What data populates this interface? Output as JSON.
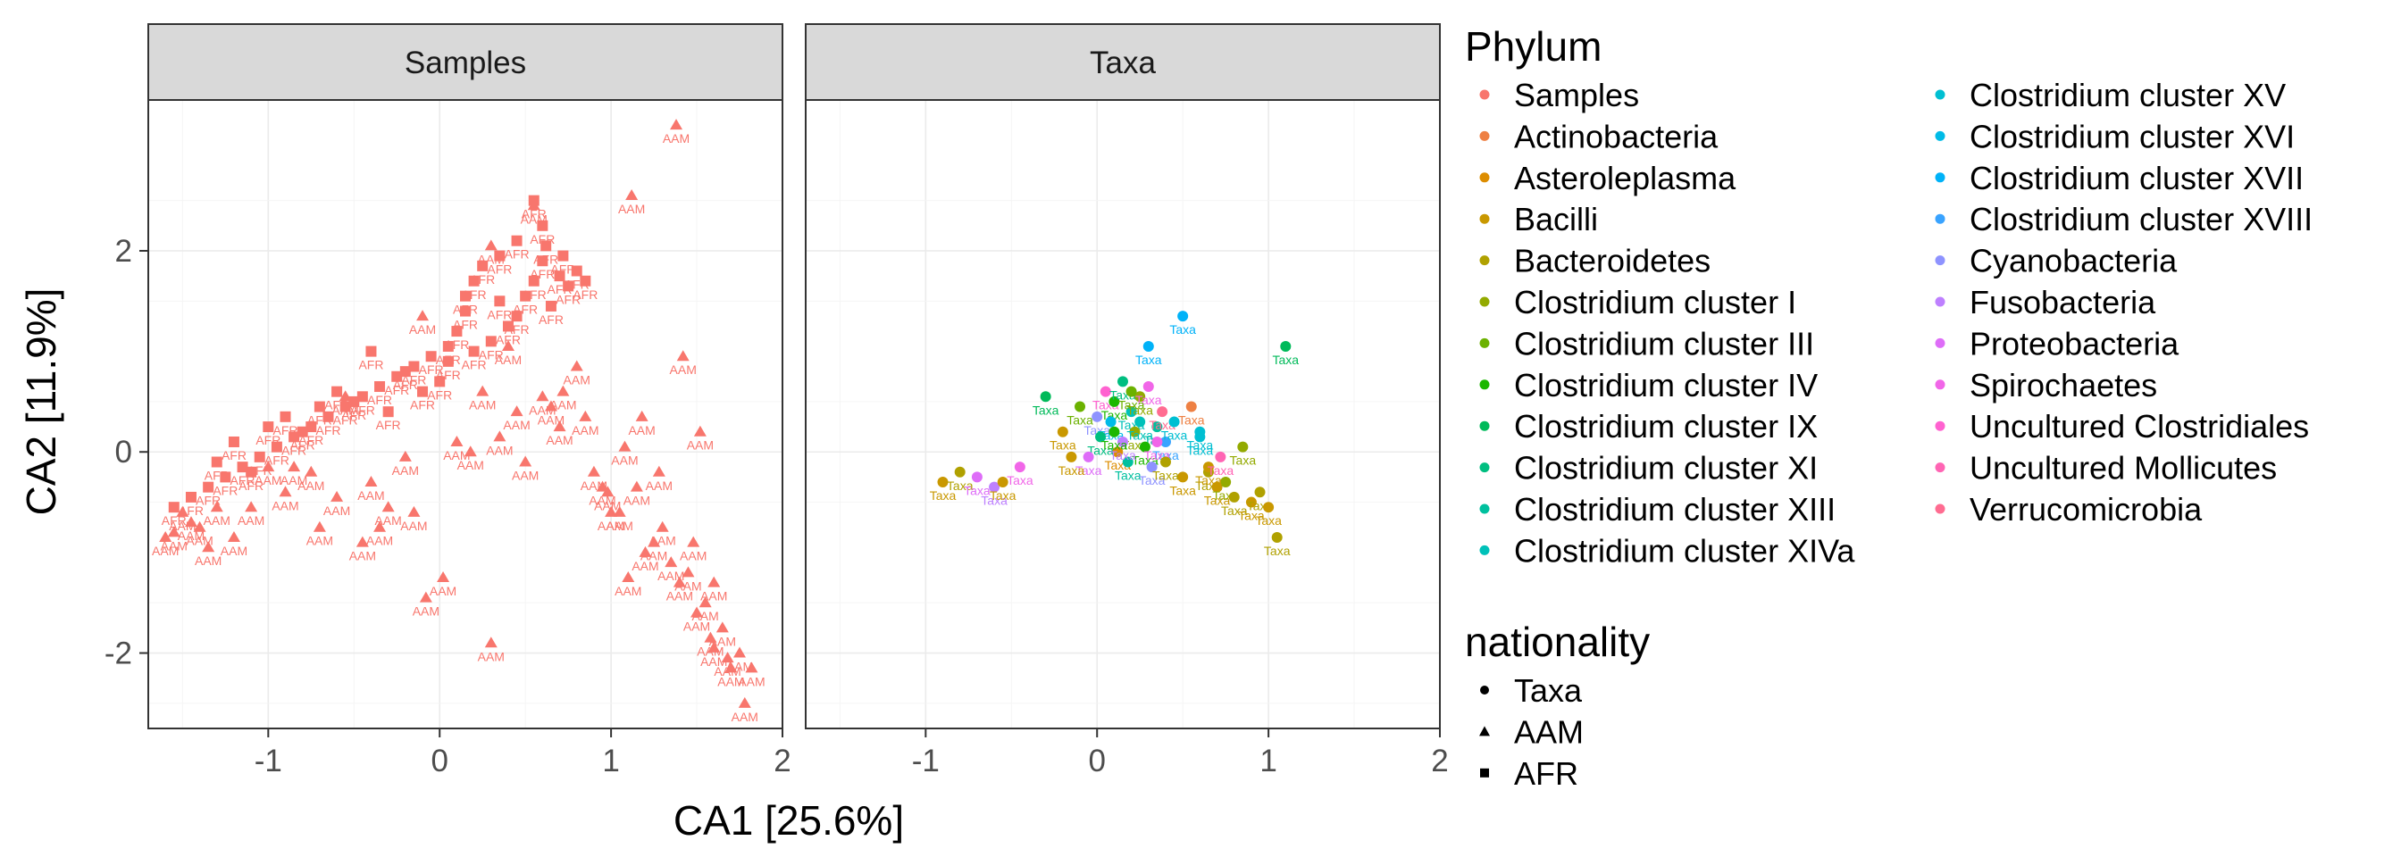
{
  "chart_data": {
    "type": "scatter",
    "panels": [
      "Samples",
      "Taxa"
    ],
    "xlabel": "CA1   [25.6%]",
    "ylabel": "CA2   [11.9%]",
    "xlim": [
      -1.7,
      2.0
    ],
    "ylim": [
      -2.75,
      3.5
    ],
    "x_ticks": [
      "-1",
      "0",
      "1",
      "2"
    ],
    "y_ticks": [
      "-2",
      "0",
      "2"
    ],
    "grid": true,
    "legend_placement": "right",
    "legends": {
      "phylum": {
        "title": "Phylum",
        "entries": [
          {
            "label": "Samples",
            "color": "#F8766D"
          },
          {
            "label": "Actinobacteria",
            "color": "#EE8043"
          },
          {
            "label": "Asteroleplasma",
            "color": "#DD8D00"
          },
          {
            "label": "Bacilli",
            "color": "#C99800"
          },
          {
            "label": "Bacteroidetes",
            "color": "#B0A100"
          },
          {
            "label": "Clostridium cluster I",
            "color": "#93AA00"
          },
          {
            "label": "Clostridium cluster III",
            "color": "#6BB100"
          },
          {
            "label": "Clostridium cluster IV",
            "color": "#1CB700"
          },
          {
            "label": "Clostridium cluster IX",
            "color": "#00BA5A"
          },
          {
            "label": "Clostridium cluster XI",
            "color": "#00BE80"
          },
          {
            "label": "Clostridium cluster XIII",
            "color": "#00C09E"
          },
          {
            "label": "Clostridium cluster XIVa",
            "color": "#00C1B9"
          },
          {
            "label": "Clostridium cluster XV",
            "color": "#00BFD2"
          },
          {
            "label": "Clostridium cluster XVI",
            "color": "#00BBE7"
          },
          {
            "label": "Clostridium cluster XVII",
            "color": "#00B2F8"
          },
          {
            "label": "Clostridium cluster XVIII",
            "color": "#39A3FF"
          },
          {
            "label": "Cyanobacteria",
            "color": "#8E93FF"
          },
          {
            "label": "Fusobacteria",
            "color": "#BE80FF"
          },
          {
            "label": "Proteobacteria",
            "color": "#DE6DF8"
          },
          {
            "label": "Spirochaetes",
            "color": "#F166E8"
          },
          {
            "label": "Uncultured Clostridiales",
            "color": "#FF62D0"
          },
          {
            "label": "Uncultured Mollicutes",
            "color": "#FF65B4"
          },
          {
            "label": "Verrucomicrobia",
            "color": "#FF6C91"
          }
        ]
      },
      "nationality": {
        "title": "nationality",
        "entries": [
          {
            "label": "Taxa",
            "shape": "circle"
          },
          {
            "label": "AAM",
            "shape": "triangle"
          },
          {
            "label": "AFR",
            "shape": "square"
          }
        ]
      }
    },
    "series": [
      {
        "panel": "Samples",
        "name": "AAM",
        "color": "#F8766D",
        "shape": "triangle",
        "x": [
          1.38,
          1.12,
          0.55,
          0.3,
          -0.1,
          -0.55,
          -1.55,
          -1.4,
          -1.2,
          -1.1,
          -0.9,
          -0.7,
          -0.45,
          -0.3,
          -0.4,
          -0.2,
          0.1,
          0.35,
          0.5,
          0.72,
          0.85,
          0.6,
          0.9,
          1.05,
          1.15,
          1.25,
          1.4,
          1.5,
          1.6,
          1.7,
          1.78,
          1.82,
          1.65,
          1.55,
          1.45,
          1.35,
          1.2,
          1.1,
          1.0,
          0.95,
          1.3,
          1.42,
          1.52,
          0.02,
          -0.08,
          0.3,
          -0.6,
          -0.75,
          -1.0,
          -1.3,
          -1.45,
          -1.6,
          0.8,
          0.7,
          1.18,
          1.08,
          0.98,
          1.28,
          1.48,
          1.58,
          1.68,
          -0.35,
          -0.15,
          0.18,
          0.45,
          0.65,
          0.25,
          0.4,
          -1.5,
          -1.35,
          -0.85,
          1.75,
          1.6
        ],
        "y": [
          3.25,
          2.55,
          2.45,
          2.05,
          1.35,
          0.55,
          -0.8,
          -0.75,
          -0.85,
          -0.55,
          -0.4,
          -0.75,
          -0.9,
          -0.55,
          -0.3,
          -0.05,
          0.1,
          0.15,
          -0.1,
          0.6,
          0.35,
          0.55,
          -0.2,
          -0.6,
          -0.35,
          -0.9,
          -1.3,
          -1.6,
          -1.95,
          -2.15,
          -2.5,
          -2.15,
          -1.75,
          -1.5,
          -1.2,
          -1.1,
          -1.0,
          -1.25,
          -0.6,
          -0.35,
          -0.75,
          0.95,
          0.2,
          -1.25,
          -1.45,
          -1.9,
          -0.45,
          -0.2,
          -0.15,
          -0.55,
          -0.7,
          -0.85,
          0.85,
          0.25,
          0.35,
          0.05,
          -0.4,
          -0.2,
          -0.9,
          -1.85,
          -2.05,
          -0.75,
          -0.6,
          0.0,
          0.4,
          0.45,
          0.6,
          1.05,
          -0.6,
          -0.95,
          -0.15,
          -2.0,
          -1.3
        ]
      },
      {
        "panel": "Samples",
        "name": "AFR",
        "color": "#F8766D",
        "shape": "square",
        "x": [
          0.55,
          0.6,
          0.45,
          0.35,
          0.25,
          0.2,
          0.15,
          0.6,
          0.7,
          0.75,
          0.8,
          0.65,
          0.5,
          0.4,
          0.3,
          0.1,
          0.05,
          -0.05,
          -0.15,
          -0.25,
          -0.35,
          -0.45,
          -0.55,
          -0.65,
          -0.75,
          -0.85,
          -0.95,
          -1.05,
          -1.15,
          -1.25,
          -1.35,
          -1.45,
          -1.55,
          -0.9,
          -0.8,
          -0.6,
          -0.5,
          -0.2,
          0.0,
          0.2,
          -1.0,
          -1.2,
          -1.3,
          0.85,
          0.45,
          0.35,
          0.15,
          0.05,
          -0.1,
          -0.3,
          -0.4,
          -0.7,
          -1.1,
          0.62,
          0.55,
          0.72
        ],
        "y": [
          2.5,
          2.25,
          2.1,
          1.95,
          1.85,
          1.7,
          1.55,
          1.9,
          1.75,
          1.65,
          1.8,
          1.45,
          1.55,
          1.25,
          1.1,
          1.2,
          1.05,
          0.95,
          0.85,
          0.75,
          0.65,
          0.55,
          0.45,
          0.35,
          0.25,
          0.15,
          0.05,
          -0.05,
          -0.15,
          -0.25,
          -0.35,
          -0.45,
          -0.55,
          0.35,
          0.2,
          0.6,
          0.5,
          0.8,
          0.7,
          1.0,
          0.25,
          0.1,
          -0.1,
          1.7,
          1.35,
          1.5,
          1.4,
          0.9,
          0.6,
          0.4,
          1.0,
          0.45,
          -0.2,
          2.05,
          1.7,
          1.95
        ]
      },
      {
        "panel": "Taxa",
        "name": "Taxa",
        "shape": "circle",
        "x": [
          -0.9,
          -0.8,
          -0.7,
          -0.6,
          -0.55,
          -0.45,
          -0.3,
          -0.2,
          -0.1,
          0.0,
          0.05,
          0.1,
          0.15,
          0.2,
          0.25,
          0.3,
          0.35,
          0.4,
          0.5,
          0.55,
          0.6,
          0.65,
          0.7,
          0.75,
          0.8,
          0.9,
          0.95,
          1.0,
          1.05,
          1.1,
          0.08,
          0.12,
          0.18,
          0.22,
          0.28,
          0.32,
          0.02,
          -0.05,
          0.38,
          0.45,
          0.5,
          0.3,
          0.2,
          0.15,
          0.25,
          0.1,
          0.35,
          0.4,
          -0.15,
          0.6,
          0.65,
          0.72,
          0.85
        ],
        "y": [
          -0.3,
          -0.2,
          -0.25,
          -0.35,
          -0.3,
          -0.15,
          0.55,
          0.2,
          0.45,
          0.35,
          0.6,
          0.5,
          0.7,
          0.4,
          0.55,
          0.65,
          0.25,
          0.1,
          1.35,
          0.45,
          0.15,
          -0.2,
          -0.35,
          -0.3,
          -0.45,
          -0.5,
          -0.4,
          -0.55,
          -0.85,
          1.05,
          0.3,
          0.0,
          -0.1,
          0.2,
          0.05,
          -0.15,
          0.15,
          -0.05,
          0.4,
          0.3,
          -0.25,
          1.05,
          0.6,
          0.1,
          0.3,
          0.2,
          0.1,
          -0.1,
          -0.05,
          0.2,
          -0.15,
          -0.05,
          0.05
        ],
        "colors": [
          "#C99800",
          "#B0A100",
          "#DE6DF8",
          "#BE80FF",
          "#C99800",
          "#F166E8",
          "#00BA5A",
          "#C99800",
          "#6BB100",
          "#8E93FF",
          "#FF62D0",
          "#1CB700",
          "#00BE80",
          "#00C1B9",
          "#93AA00",
          "#F166E8",
          "#00C09E",
          "#39A3FF",
          "#00B2F8",
          "#EE8043",
          "#00BFD2",
          "#B0A100",
          "#C99800",
          "#93AA00",
          "#B0A100",
          "#C99800",
          "#B0A100",
          "#C99800",
          "#B0A100",
          "#00BA5A",
          "#00BBE7",
          "#DD8D00",
          "#00C09E",
          "#93AA00",
          "#1CB700",
          "#8E93FF",
          "#00BE80",
          "#DE6DF8",
          "#FF6C91",
          "#00BFD2",
          "#C99800",
          "#00B2F8",
          "#6BB100",
          "#BE80FF",
          "#00C1B9",
          "#1CB700",
          "#F166E8",
          "#B0A100",
          "#C99800",
          "#00BFD2",
          "#C99800",
          "#FF65B4",
          "#93AA00"
        ]
      }
    ]
  }
}
